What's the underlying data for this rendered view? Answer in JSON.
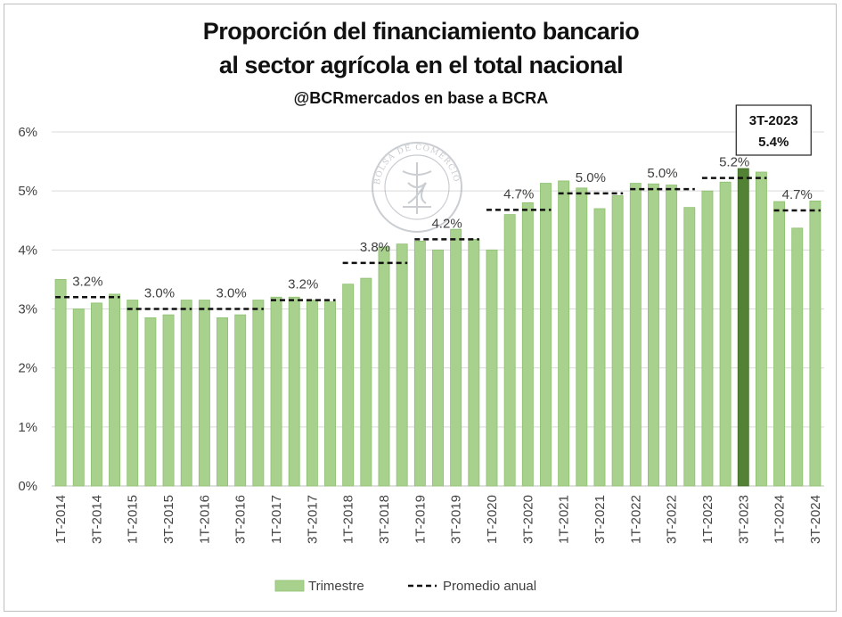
{
  "header": {
    "title_line1": "Proporción del financiamiento bancario",
    "title_line2": "al sector agrícola en el total nacional",
    "subtitle": "@BCRmercados en base a BCRA"
  },
  "watermark": {
    "text": "BOLSA DE COMERCIO DE ROSARIO"
  },
  "colors": {
    "bar": "#a9d18e",
    "bar_edge": "#8cbf6e",
    "highlight": "#548235",
    "avg_line": "#111111",
    "grid": "#d9d9d9"
  },
  "chart_data": {
    "type": "bar",
    "categories": [
      "1T-2014",
      "2T-2014",
      "3T-2014",
      "4T-2014",
      "1T-2015",
      "2T-2015",
      "3T-2015",
      "4T-2015",
      "1T-2016",
      "2T-2016",
      "3T-2016",
      "4T-2016",
      "1T-2017",
      "2T-2017",
      "3T-2017",
      "4T-2017",
      "1T-2018",
      "2T-2018",
      "3T-2018",
      "4T-2018",
      "1T-2019",
      "2T-2019",
      "3T-2019",
      "4T-2019",
      "1T-2020",
      "2T-2020",
      "3T-2020",
      "4T-2020",
      "1T-2021",
      "2T-2021",
      "3T-2021",
      "4T-2021",
      "1T-2022",
      "2T-2022",
      "3T-2022",
      "4T-2022",
      "1T-2023",
      "2T-2023",
      "3T-2023",
      "4T-2023",
      "1T-2024",
      "2T-2024",
      "3T-2024"
    ],
    "tick_labels": [
      "1T-2014",
      "3T-2014",
      "1T-2015",
      "3T-2015",
      "1T-2016",
      "3T-2016",
      "1T-2017",
      "3T-2017",
      "1T-2018",
      "3T-2018",
      "1T-2019",
      "3T-2019",
      "1T-2020",
      "3T-2020",
      "1T-2021",
      "3T-2021",
      "1T-2022",
      "3T-2022",
      "1T-2023",
      "3T-2023",
      "1T-2024",
      "3T-2024"
    ],
    "series": [
      {
        "name": "Trimestre",
        "values": [
          3.5,
          3.0,
          3.1,
          3.25,
          3.15,
          2.85,
          2.9,
          3.15,
          3.15,
          2.85,
          2.9,
          3.15,
          3.2,
          3.2,
          3.15,
          3.12,
          3.42,
          3.52,
          4.05,
          4.1,
          4.15,
          4.0,
          4.35,
          4.18,
          4.0,
          4.6,
          4.8,
          5.13,
          5.17,
          5.05,
          4.7,
          4.92,
          5.13,
          5.12,
          5.1,
          4.72,
          5.0,
          5.15,
          5.38,
          5.32,
          4.82,
          4.37,
          4.83
        ]
      }
    ],
    "annual_averages": [
      {
        "year": "2014",
        "value": 3.2,
        "label": "3.2%"
      },
      {
        "year": "2015",
        "value": 3.0,
        "label": "3.0%"
      },
      {
        "year": "2016",
        "value": 3.0,
        "label": "3.0%"
      },
      {
        "year": "2017",
        "value": 3.15,
        "label": "3.2%"
      },
      {
        "year": "2018",
        "value": 3.78,
        "label": "3.8%"
      },
      {
        "year": "2019",
        "value": 4.18,
        "label": "4.2%"
      },
      {
        "year": "2020",
        "value": 4.68,
        "label": "4.7%"
      },
      {
        "year": "2021",
        "value": 4.96,
        "label": "5.0%"
      },
      {
        "year": "2022",
        "value": 5.03,
        "label": "5.0%"
      },
      {
        "year": "2023",
        "value": 5.22,
        "label": "5.2%"
      },
      {
        "year": "2024",
        "value": 4.67,
        "label": "4.7%"
      }
    ],
    "highlight": {
      "category": "3T-2023",
      "label_line1": "3T-2023",
      "label_line2": "5.4%"
    },
    "y_ticks": [
      "0%",
      "1%",
      "2%",
      "3%",
      "4%",
      "5%",
      "6%"
    ],
    "ylim": [
      0,
      6
    ],
    "legend": {
      "bar_label": "Trimestre",
      "line_label": "Promedio anual",
      "position": "bottom"
    },
    "grid": true
  }
}
